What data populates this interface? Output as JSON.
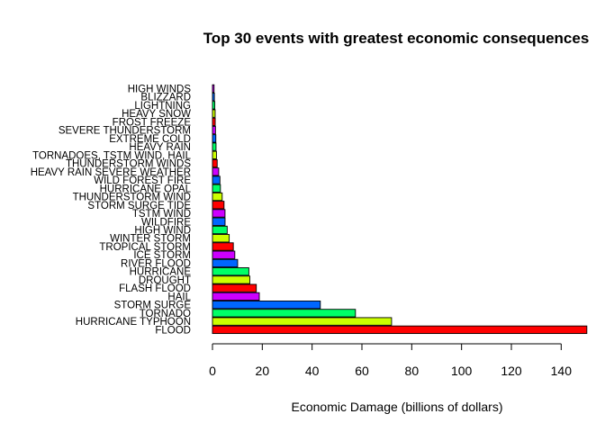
{
  "chart_data": {
    "type": "bar",
    "orientation": "horizontal",
    "title": "Top 30 events with greatest economic consequences",
    "xlabel": "Economic Damage (billions of dollars)",
    "ylabel": "",
    "xlim": [
      0,
      150
    ],
    "xticks": [
      "0",
      "20",
      "40",
      "60",
      "80",
      "100",
      "120",
      "140"
    ],
    "grid": false,
    "legend": "none",
    "palette": [
      "#FF0000",
      "#CCFF00",
      "#00FF66",
      "#0066FF",
      "#CC00FF"
    ],
    "categories": [
      "FLOOD",
      "HURRICANE TYPHOON",
      "TORNADO",
      "STORM SURGE",
      "HAIL",
      "FLASH FLOOD",
      "DROUGHT",
      "HURRICANE",
      "RIVER FLOOD",
      "ICE STORM",
      "TROPICAL STORM",
      "WINTER STORM",
      "HIGH WIND",
      "WILDFIRE",
      "TSTM WIND",
      "STORM SURGE TIDE",
      "THUNDERSTORM WIND",
      "HURRICANE OPAL",
      "WILD FOREST FIRE",
      "HEAVY RAIN SEVERE WEATHER",
      "THUNDERSTORM WINDS",
      "TORNADOES, TSTM WIND, HAIL",
      "HEAVY RAIN",
      "EXTREME COLD",
      "SEVERE THUNDERSTORM",
      "FROST FREEZE",
      "HEAVY SNOW",
      "LIGHTNING",
      "BLIZZARD",
      "HIGH WINDS"
    ],
    "values": [
      150.3,
      71.9,
      57.4,
      43.3,
      18.8,
      17.6,
      15.0,
      14.6,
      10.1,
      8.97,
      8.38,
      6.72,
      5.91,
      5.06,
      5.04,
      4.64,
      3.9,
      3.19,
      3.0,
      2.5,
      1.9,
      1.6,
      1.43,
      1.36,
      1.21,
      1.1,
      1.07,
      0.94,
      0.77,
      0.64
    ]
  }
}
